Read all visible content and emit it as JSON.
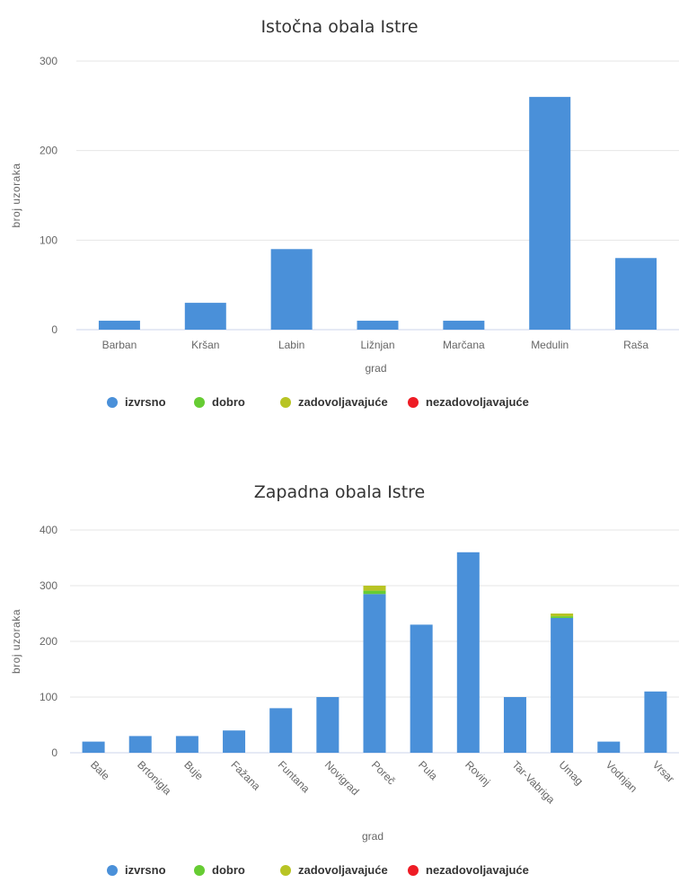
{
  "colors": {
    "izvrsno": "#4a90d9",
    "dobro": "#66cc33",
    "zadovoljavajuce": "#b8c424",
    "nezadovoljavajuce": "#ee1c25"
  },
  "chart_data": [
    {
      "type": "bar",
      "title": "Istočna obala Istre",
      "xlabel": "grad",
      "ylabel": "broj uzoraka",
      "ylim": [
        0,
        300
      ],
      "yticks": [
        "0",
        "100",
        "200",
        "300"
      ],
      "grid": true,
      "legend_position": "bottom",
      "stacked": true,
      "categories": [
        "Barban",
        "Kršan",
        "Labin",
        "Ližnjan",
        "Marčana",
        "Medulin",
        "Raša"
      ],
      "series": [
        {
          "name": "izvrsno",
          "color": "#4a90d9",
          "values": [
            10,
            30,
            90,
            10,
            10,
            260,
            80
          ]
        },
        {
          "name": "dobro",
          "color": "#66cc33",
          "values": [
            0,
            0,
            0,
            0,
            0,
            0,
            0
          ]
        },
        {
          "name": "zadovoljavajuće",
          "color": "#b8c424",
          "values": [
            0,
            0,
            0,
            0,
            0,
            0,
            0
          ]
        },
        {
          "name": "nezadovoljavajuće",
          "color": "#ee1c25",
          "values": [
            0,
            0,
            0,
            0,
            0,
            0,
            0
          ]
        }
      ]
    },
    {
      "type": "bar",
      "title": "Zapadna obala Istre",
      "xlabel": "grad",
      "ylabel": "broj uzoraka",
      "ylim": [
        0,
        400
      ],
      "yticks": [
        "0",
        "100",
        "200",
        "300",
        "400"
      ],
      "grid": true,
      "legend_position": "bottom",
      "stacked": true,
      "categories": [
        "Bale",
        "Brtonigla",
        "Buje",
        "Fažana",
        "Funtana",
        "Novigrad",
        "Poreč",
        "Pula",
        "Rovinj",
        "Tar-Vabriga",
        "Umag",
        "Vodnjan",
        "Vrsar"
      ],
      "series": [
        {
          "name": "izvrsno",
          "color": "#4a90d9",
          "values": [
            20,
            30,
            30,
            40,
            80,
            100,
            285,
            230,
            360,
            100,
            242,
            20,
            110
          ]
        },
        {
          "name": "dobro",
          "color": "#66cc33",
          "values": [
            0,
            0,
            0,
            0,
            0,
            0,
            6,
            0,
            0,
            0,
            3,
            0,
            0
          ]
        },
        {
          "name": "zadovoljavajuće",
          "color": "#b8c424",
          "values": [
            0,
            0,
            0,
            0,
            0,
            0,
            9,
            0,
            0,
            0,
            5,
            0,
            0
          ]
        },
        {
          "name": "nezadovoljavajuće",
          "color": "#ee1c25",
          "values": [
            0,
            0,
            0,
            0,
            0,
            0,
            0,
            0,
            0,
            0,
            0,
            0,
            0
          ]
        }
      ]
    }
  ]
}
